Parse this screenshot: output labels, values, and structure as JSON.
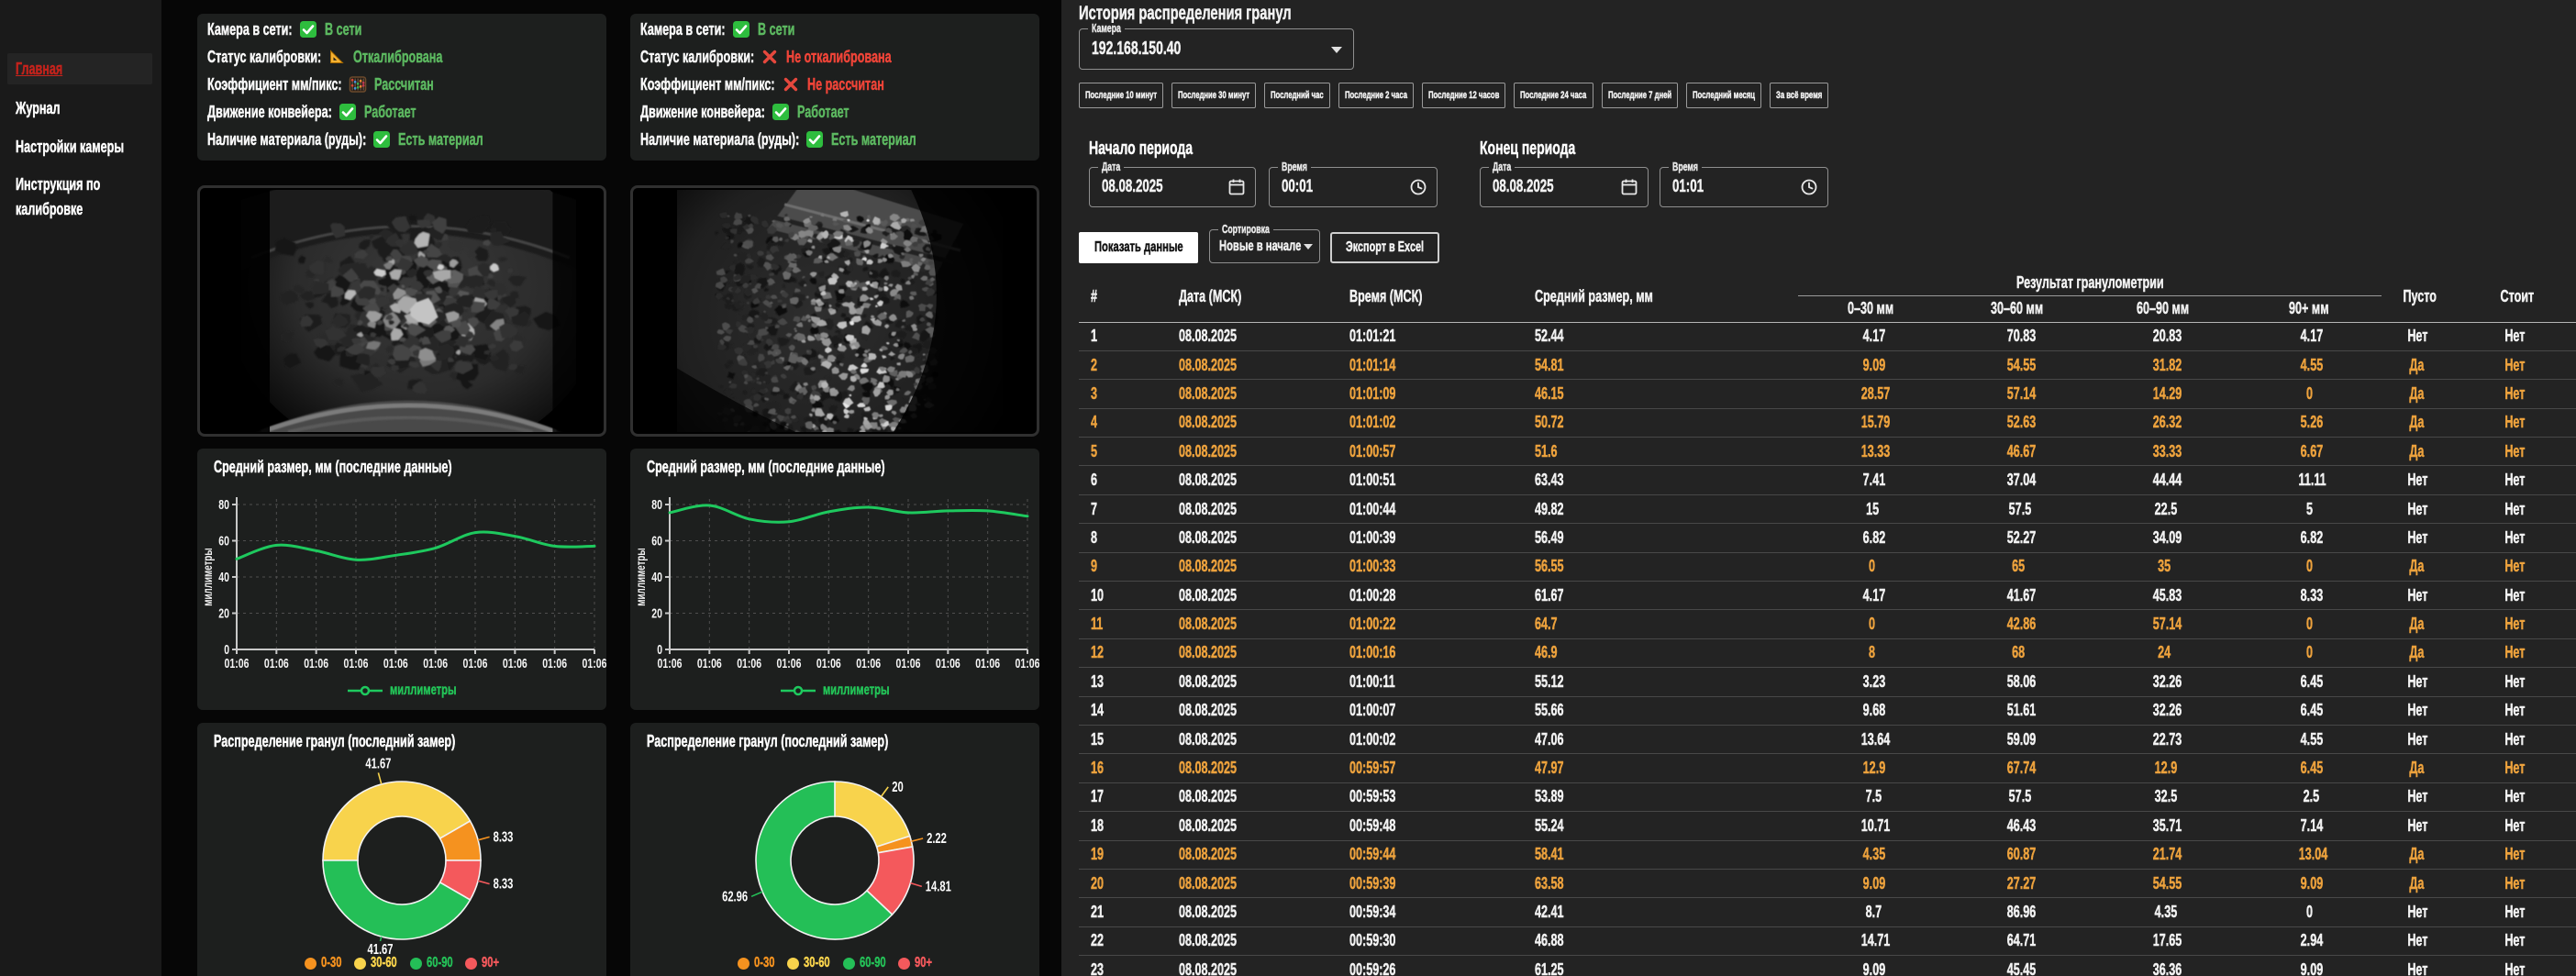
{
  "colors": {
    "status_green": "#5cb860",
    "status_red": "#ef4438",
    "row_orange": "#eda23d",
    "line_green": "#1ec95e",
    "slice_orange": "#f5921f",
    "slice_yellow": "#f8d34c",
    "slice_green": "#24bf57",
    "slice_red": "#f4595c",
    "active_red": "#c3231c"
  },
  "sidebar": {
    "items": [
      {
        "label": "Главная",
        "active": true
      },
      {
        "label": "Журнал",
        "active": false
      },
      {
        "label": "Настройки камеры",
        "active": false
      },
      {
        "label": "Инструкция по калибровке",
        "active": false
      }
    ]
  },
  "cameras": [
    {
      "status": [
        {
          "label": "Камера в сети:",
          "icon": "check-icon",
          "value": "В сети",
          "state": "ok"
        },
        {
          "label": "Статус калибровки:",
          "icon": "triangle-ruler-icon",
          "value": "Откалибрована",
          "state": "ok"
        },
        {
          "label": "Коэффициент мм/пикс:",
          "icon": "abacus-icon",
          "value": "Рассчитан",
          "state": "ok"
        },
        {
          "label": "Движение конвейера:",
          "icon": "check-icon",
          "value": "Работает",
          "state": "ok"
        },
        {
          "label": "Наличие материала (руды):",
          "icon": "check-icon",
          "value": "Есть материал",
          "state": "ok"
        }
      ],
      "photo": "rocks-large",
      "line_chart": {
        "type": "line",
        "title": "Средний размер, мм (последние данные)",
        "ylabel": "миллиметры",
        "legend": "миллиметры",
        "ylim": [
          0,
          80
        ],
        "yticks": [
          0,
          20,
          40,
          60,
          80
        ],
        "x": [
          "01:06",
          "01:06",
          "01:06",
          "01:06",
          "01:06",
          "01:06",
          "01:06",
          "01:06",
          "01:06",
          "01:06"
        ],
        "values": [
          50,
          57.5,
          54.5,
          49.5,
          52,
          56,
          64.5,
          62.5,
          57,
          57
        ]
      },
      "donut": {
        "type": "pie",
        "title": "Распределение гранул (последний замер)",
        "rotation_deg": 270,
        "slices": [
          {
            "label": "30-60",
            "value": 41.67,
            "color": "yellow"
          },
          {
            "label": "0-30",
            "value": 8.33,
            "color": "orange"
          },
          {
            "label": "90+",
            "value": 8.33,
            "color": "red"
          },
          {
            "label": "60-90",
            "value": 41.67,
            "color": "green"
          }
        ],
        "legend": [
          {
            "label": "0-30",
            "color": "orange"
          },
          {
            "label": "30-60",
            "color": "yellow"
          },
          {
            "label": "60-90",
            "color": "green"
          },
          {
            "label": "90+",
            "color": "red"
          }
        ]
      }
    },
    {
      "status": [
        {
          "label": "Камера в сети:",
          "icon": "check-icon",
          "value": "В сети",
          "state": "ok"
        },
        {
          "label": "Статус калибровки:",
          "icon": "cross-icon",
          "value": "Не откалибрована",
          "state": "err"
        },
        {
          "label": "Коэффициент мм/пикс:",
          "icon": "cross-icon",
          "value": "Не рассчитан",
          "state": "err"
        },
        {
          "label": "Движение конвейера:",
          "icon": "check-icon",
          "value": "Работает",
          "state": "ok"
        },
        {
          "label": "Наличие материала (руды):",
          "icon": "check-icon",
          "value": "Есть материал",
          "state": "ok"
        }
      ],
      "photo": "gravel-fisheye",
      "line_chart": {
        "type": "line",
        "title": "Средний размер, мм (последние данные)",
        "ylabel": "миллиметры",
        "legend": "миллиметры",
        "ylim": [
          0,
          80
        ],
        "yticks": [
          0,
          20,
          40,
          60,
          80
        ],
        "x": [
          "01:06",
          "01:06",
          "01:06",
          "01:06",
          "01:06",
          "01:06",
          "01:06",
          "01:06",
          "01:06",
          "01:06"
        ],
        "values": [
          75.5,
          79.5,
          72,
          70.5,
          76,
          78.5,
          75.5,
          76.5,
          76.5,
          73.5
        ]
      },
      "donut": {
        "type": "pie",
        "title": "Распределение гранул (последний замер)",
        "rotation_deg": 0,
        "slices": [
          {
            "label": "30-60",
            "value": 20,
            "color": "yellow"
          },
          {
            "label": "0-30",
            "value": 2.22,
            "color": "orange"
          },
          {
            "label": "90+",
            "value": 14.81,
            "color": "red"
          },
          {
            "label": "60-90",
            "value": 62.96,
            "color": "green"
          }
        ],
        "legend": [
          {
            "label": "0-30",
            "color": "orange"
          },
          {
            "label": "30-60",
            "color": "yellow"
          },
          {
            "label": "60-90",
            "color": "green"
          },
          {
            "label": "90+",
            "color": "red"
          }
        ]
      }
    }
  ],
  "history": {
    "title": "История распределения гранул",
    "camera_select": {
      "label": "Камера",
      "value": "192.168.150.40"
    },
    "range_buttons": [
      "Последние 10 минут",
      "Последние 30 минут",
      "Последний час",
      "Последние 2 часа",
      "Последние 12 часов",
      "Последние 24 часа",
      "Последние 7 дней",
      "Последний месяц",
      "За всё время"
    ],
    "period_start": {
      "label": "Начало периода",
      "date_label": "Дата",
      "date": "08.08.2025",
      "time_label": "Время",
      "time": "00:01"
    },
    "period_end": {
      "label": "Конец периода",
      "date_label": "Дата",
      "date": "08.08.2025",
      "time_label": "Время",
      "time": "01:01"
    },
    "show_button": "Показать данные",
    "sort": {
      "label": "Сортировка",
      "value": "Новые в начале"
    },
    "export_button": "Экспорт в Excel",
    "table": {
      "group_header": "Результат гранулометрии",
      "columns": [
        "#",
        "Дата (МСК)",
        "Время (МСК)",
        "Средний размер, мм",
        "0–30 мм",
        "30–60 мм",
        "60–90 мм",
        "90+ мм",
        "Пусто",
        "Стоит"
      ],
      "rows": [
        [
          "1",
          "08.08.2025",
          "01:01:21",
          "52.44",
          "4.17",
          "70.83",
          "20.83",
          "4.17",
          "Нет",
          "Нет"
        ],
        [
          "2",
          "08.08.2025",
          "01:01:14",
          "54.81",
          "9.09",
          "54.55",
          "31.82",
          "4.55",
          "Да",
          "Нет"
        ],
        [
          "3",
          "08.08.2025",
          "01:01:09",
          "46.15",
          "28.57",
          "57.14",
          "14.29",
          "0",
          "Да",
          "Нет"
        ],
        [
          "4",
          "08.08.2025",
          "01:01:02",
          "50.72",
          "15.79",
          "52.63",
          "26.32",
          "5.26",
          "Да",
          "Нет"
        ],
        [
          "5",
          "08.08.2025",
          "01:00:57",
          "51.6",
          "13.33",
          "46.67",
          "33.33",
          "6.67",
          "Да",
          "Нет"
        ],
        [
          "6",
          "08.08.2025",
          "01:00:51",
          "63.43",
          "7.41",
          "37.04",
          "44.44",
          "11.11",
          "Нет",
          "Нет"
        ],
        [
          "7",
          "08.08.2025",
          "01:00:44",
          "49.82",
          "15",
          "57.5",
          "22.5",
          "5",
          "Нет",
          "Нет"
        ],
        [
          "8",
          "08.08.2025",
          "01:00:39",
          "56.49",
          "6.82",
          "52.27",
          "34.09",
          "6.82",
          "Нет",
          "Нет"
        ],
        [
          "9",
          "08.08.2025",
          "01:00:33",
          "56.55",
          "0",
          "65",
          "35",
          "0",
          "Да",
          "Нет"
        ],
        [
          "10",
          "08.08.2025",
          "01:00:28",
          "61.67",
          "4.17",
          "41.67",
          "45.83",
          "8.33",
          "Нет",
          "Нет"
        ],
        [
          "11",
          "08.08.2025",
          "01:00:22",
          "64.7",
          "0",
          "42.86",
          "57.14",
          "0",
          "Да",
          "Нет"
        ],
        [
          "12",
          "08.08.2025",
          "01:00:16",
          "46.9",
          "8",
          "68",
          "24",
          "0",
          "Да",
          "Нет"
        ],
        [
          "13",
          "08.08.2025",
          "01:00:11",
          "55.12",
          "3.23",
          "58.06",
          "32.26",
          "6.45",
          "Нет",
          "Нет"
        ],
        [
          "14",
          "08.08.2025",
          "01:00:07",
          "55.66",
          "9.68",
          "51.61",
          "32.26",
          "6.45",
          "Нет",
          "Нет"
        ],
        [
          "15",
          "08.08.2025",
          "01:00:02",
          "47.06",
          "13.64",
          "59.09",
          "22.73",
          "4.55",
          "Нет",
          "Нет"
        ],
        [
          "16",
          "08.08.2025",
          "00:59:57",
          "47.97",
          "12.9",
          "67.74",
          "12.9",
          "6.45",
          "Да",
          "Нет"
        ],
        [
          "17",
          "08.08.2025",
          "00:59:53",
          "53.89",
          "7.5",
          "57.5",
          "32.5",
          "2.5",
          "Нет",
          "Нет"
        ],
        [
          "18",
          "08.08.2025",
          "00:59:48",
          "55.24",
          "10.71",
          "46.43",
          "35.71",
          "7.14",
          "Нет",
          "Нет"
        ],
        [
          "19",
          "08.08.2025",
          "00:59:44",
          "58.41",
          "4.35",
          "60.87",
          "21.74",
          "13.04",
          "Да",
          "Нет"
        ],
        [
          "20",
          "08.08.2025",
          "00:59:39",
          "63.58",
          "9.09",
          "27.27",
          "54.55",
          "9.09",
          "Да",
          "Нет"
        ],
        [
          "21",
          "08.08.2025",
          "00:59:34",
          "42.41",
          "8.7",
          "86.96",
          "4.35",
          "0",
          "Нет",
          "Нет"
        ],
        [
          "22",
          "08.08.2025",
          "00:59:30",
          "46.88",
          "14.71",
          "64.71",
          "17.65",
          "2.94",
          "Нет",
          "Нет"
        ],
        [
          "23",
          "08.08.2025",
          "00:59:26",
          "61.25",
          "9.09",
          "45.45",
          "36.36",
          "9.09",
          "Нет",
          "Нет"
        ]
      ]
    }
  }
}
